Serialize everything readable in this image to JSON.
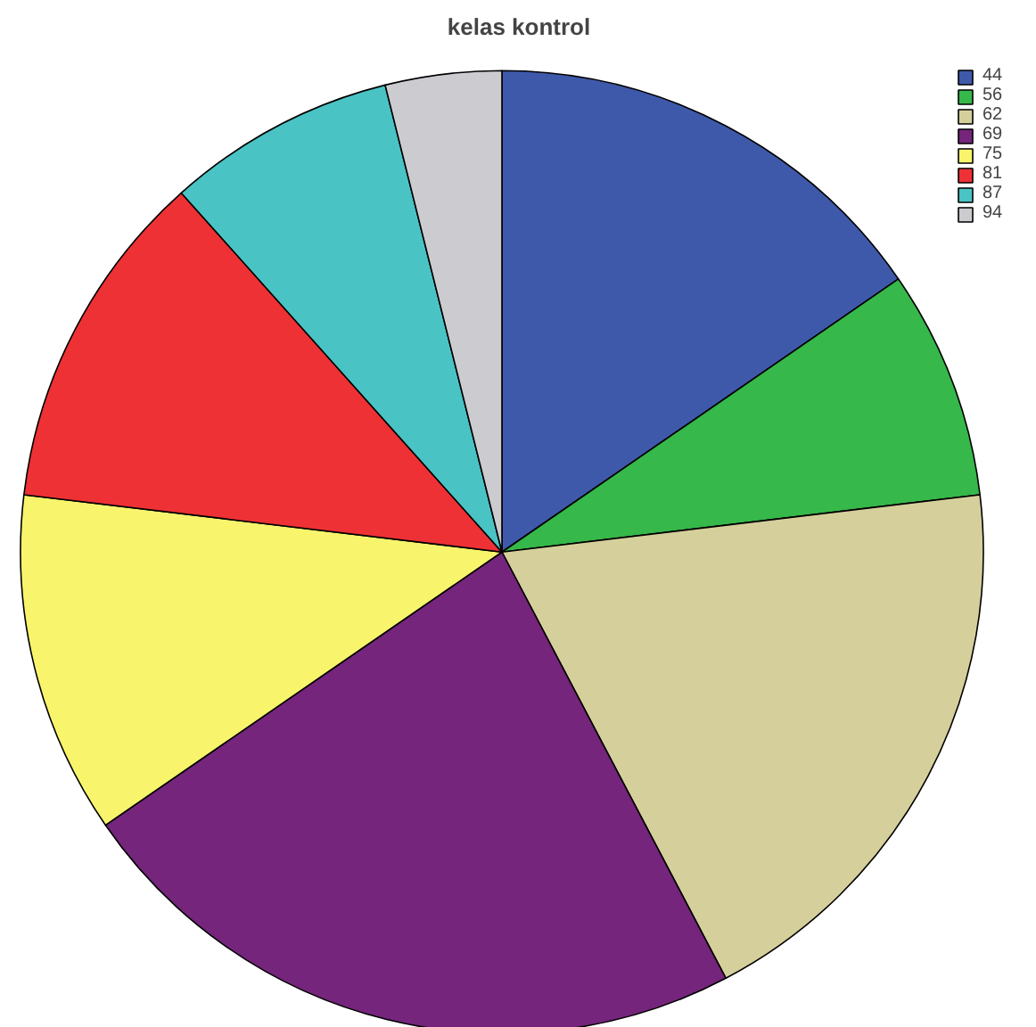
{
  "chart_data": {
    "type": "pie",
    "title": "kelas kontrol",
    "categories": [
      "44",
      "56",
      "62",
      "69",
      "75",
      "81",
      "87",
      "94"
    ],
    "values": [
      15.4,
      7.7,
      19.2,
      23.1,
      11.5,
      11.5,
      7.7,
      3.9
    ],
    "colors": [
      "#3f59aa",
      "#36b84a",
      "#d5cf9b",
      "#75257b",
      "#f8f56c",
      "#ee3135",
      "#4ac3c4",
      "#cccbd0"
    ],
    "legend": "top right"
  }
}
